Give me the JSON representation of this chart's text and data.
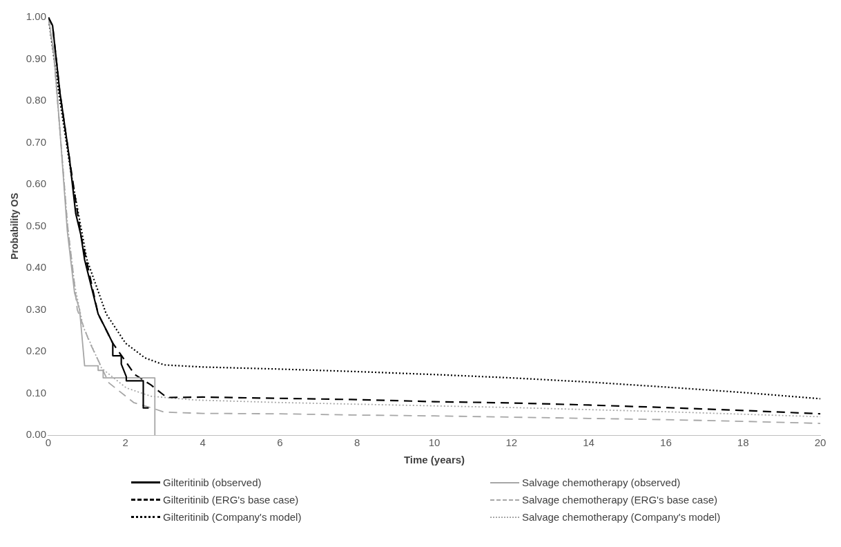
{
  "chart_data": {
    "type": "line",
    "xlabel": "Time (years)",
    "ylabel": "Probability OS",
    "legend": "bottom",
    "grid": false,
    "marker": "none",
    "xlim": [
      0,
      20
    ],
    "xticks": [
      0,
      2,
      4,
      6,
      8,
      10,
      12,
      14,
      16,
      18,
      20
    ],
    "ylim": [
      0,
      1
    ],
    "yticks": [
      {
        "value": 0,
        "label": "0.00"
      },
      {
        "value": 0.1,
        "label": "0.10"
      },
      {
        "value": 0.2,
        "label": "0.20"
      },
      {
        "value": 0.3,
        "label": "0.30"
      },
      {
        "value": 0.4,
        "label": "0.40"
      },
      {
        "value": 0.5,
        "label": "0.50"
      },
      {
        "value": 0.6,
        "label": "0.60"
      },
      {
        "value": 0.7,
        "label": "0.70"
      },
      {
        "value": 0.8,
        "label": "0.80"
      },
      {
        "value": 0.9,
        "label": "0.90"
      },
      {
        "value": 1,
        "label": "1.00"
      }
    ],
    "series": [
      {
        "name": "Gilteritinib (observed)",
        "color": "#000000",
        "line_style": "solid",
        "x": [
          0,
          0.11,
          0.3,
          0.55,
          0.71,
          0.84,
          0.94,
          1.29,
          1.51,
          1.67,
          1.67,
          1.89,
          1.89,
          2.02,
          2.02,
          2.46,
          2.46,
          2.6
        ],
        "values": [
          1,
          0.98,
          0.82,
          0.66,
          0.53,
          0.48,
          0.42,
          0.29,
          0.25,
          0.22,
          0.19,
          0.19,
          0.17,
          0.14,
          0.13,
          0.13,
          0.065,
          0.065
        ]
      },
      {
        "name": "Salvage chemotherapy (observed)",
        "color": "#a6a6a6",
        "line_style": "solid",
        "x": [
          0,
          0.14,
          0.3,
          0.49,
          0.68,
          0.81,
          0.94,
          1.29,
          1.29,
          1.42,
          1.42,
          2.76,
          2.76
        ],
        "values": [
          1,
          0.92,
          0.73,
          0.49,
          0.34,
          0.3,
          0.166,
          0.166,
          0.155,
          0.155,
          0.137,
          0.137,
          0
        ]
      },
      {
        "name": "Gilteritinib (ERG's base case)",
        "color": "#000000",
        "line_style": "dashed",
        "x": [
          0,
          0.11,
          0.3,
          0.55,
          0.84,
          1.29,
          1.67,
          2.24,
          2.66,
          3.07,
          4,
          6,
          8,
          10,
          12,
          14,
          16,
          18,
          20
        ],
        "values": [
          1,
          0.98,
          0.82,
          0.66,
          0.48,
          0.29,
          0.22,
          0.145,
          0.12,
          0.09,
          0.091,
          0.088,
          0.085,
          0.08,
          0.077,
          0.072,
          0.066,
          0.059,
          0.051
        ]
      },
      {
        "name": "Salvage chemotherapy (ERG's base case)",
        "color": "#a6a6a6",
        "line_style": "dashed",
        "x": [
          0,
          0.15,
          0.3,
          0.5,
          0.68,
          0.75,
          1.06,
          1.57,
          2.21,
          2.78,
          3,
          4,
          6,
          8,
          10,
          12,
          14,
          16,
          18,
          20
        ],
        "values": [
          1,
          0.9,
          0.73,
          0.5,
          0.36,
          0.3,
          0.224,
          0.125,
          0.078,
          0.062,
          0.055,
          0.052,
          0.051,
          0.048,
          0.046,
          0.043,
          0.04,
          0.037,
          0.033,
          0.028
        ]
      },
      {
        "name": "Gilteritinib (Company's model)",
        "color": "#000000",
        "line_style": "dotted",
        "x": [
          0,
          0.3,
          0.6,
          1,
          1.5,
          2,
          2.5,
          3,
          4,
          6,
          8,
          10,
          12,
          14,
          16,
          18,
          20
        ],
        "values": [
          1,
          0.8,
          0.62,
          0.42,
          0.29,
          0.22,
          0.185,
          0.168,
          0.163,
          0.158,
          0.152,
          0.145,
          0.137,
          0.127,
          0.115,
          0.102,
          0.087
        ]
      },
      {
        "name": "Salvage chemotherapy (Company's model)",
        "color": "#a6a6a6",
        "line_style": "dotted",
        "x": [
          0,
          0.15,
          0.3,
          0.5,
          0.68,
          0.9,
          1.38,
          2.02,
          2.66,
          3.8,
          6,
          8,
          10,
          12,
          14,
          16,
          18,
          20
        ],
        "values": [
          1,
          0.9,
          0.73,
          0.5,
          0.36,
          0.26,
          0.16,
          0.113,
          0.093,
          0.084,
          0.078,
          0.074,
          0.07,
          0.066,
          0.061,
          0.056,
          0.05,
          0.044
        ]
      }
    ]
  }
}
